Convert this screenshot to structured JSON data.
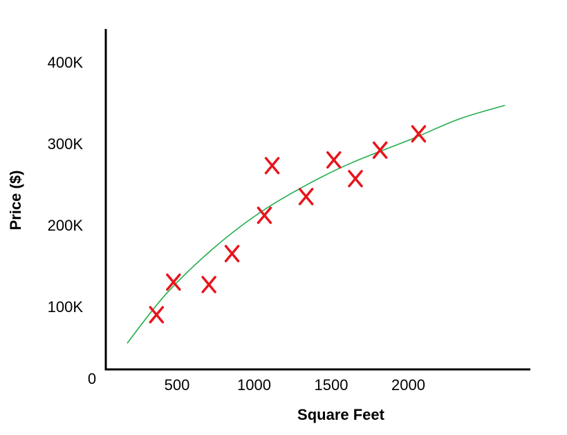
{
  "chart_data": {
    "type": "scatter",
    "xlabel": "Square Feet",
    "ylabel": "Price ($)",
    "x_ticks": [
      {
        "value": 500,
        "label": "500"
      },
      {
        "value": 1000,
        "label": "1000"
      },
      {
        "value": 1500,
        "label": "1500"
      },
      {
        "value": 2000,
        "label": "2000"
      }
    ],
    "y_ticks": [
      {
        "value": 100000,
        "label": "100K"
      },
      {
        "value": 200000,
        "label": "200K"
      },
      {
        "value": 300000,
        "label": "300K"
      },
      {
        "value": 400000,
        "label": "400K"
      }
    ],
    "origin_label": "0",
    "xlim": [
      0,
      2300
    ],
    "ylim": [
      0,
      410000
    ],
    "points": [
      {
        "x": 340,
        "y": 90000
      },
      {
        "x": 450,
        "y": 130000
      },
      {
        "x": 680,
        "y": 127000
      },
      {
        "x": 830,
        "y": 165000
      },
      {
        "x": 1040,
        "y": 212000
      },
      {
        "x": 1090,
        "y": 273000
      },
      {
        "x": 1310,
        "y": 235000
      },
      {
        "x": 1490,
        "y": 280000
      },
      {
        "x": 1630,
        "y": 257000
      },
      {
        "x": 1790,
        "y": 292000
      },
      {
        "x": 2040,
        "y": 312000
      }
    ],
    "trend_curve": [
      {
        "x": 150,
        "y": 55000
      },
      {
        "x": 400,
        "y": 115000
      },
      {
        "x": 700,
        "y": 170000
      },
      {
        "x": 1000,
        "y": 214000
      },
      {
        "x": 1300,
        "y": 248000
      },
      {
        "x": 1600,
        "y": 276000
      },
      {
        "x": 2000,
        "y": 306000
      },
      {
        "x": 2300,
        "y": 330000
      },
      {
        "x": 2600,
        "y": 347000
      }
    ],
    "grid": false,
    "legend": "none",
    "colors": {
      "marker": "#e8141b",
      "curve": "#1fae4b",
      "axis": "#000000"
    }
  }
}
